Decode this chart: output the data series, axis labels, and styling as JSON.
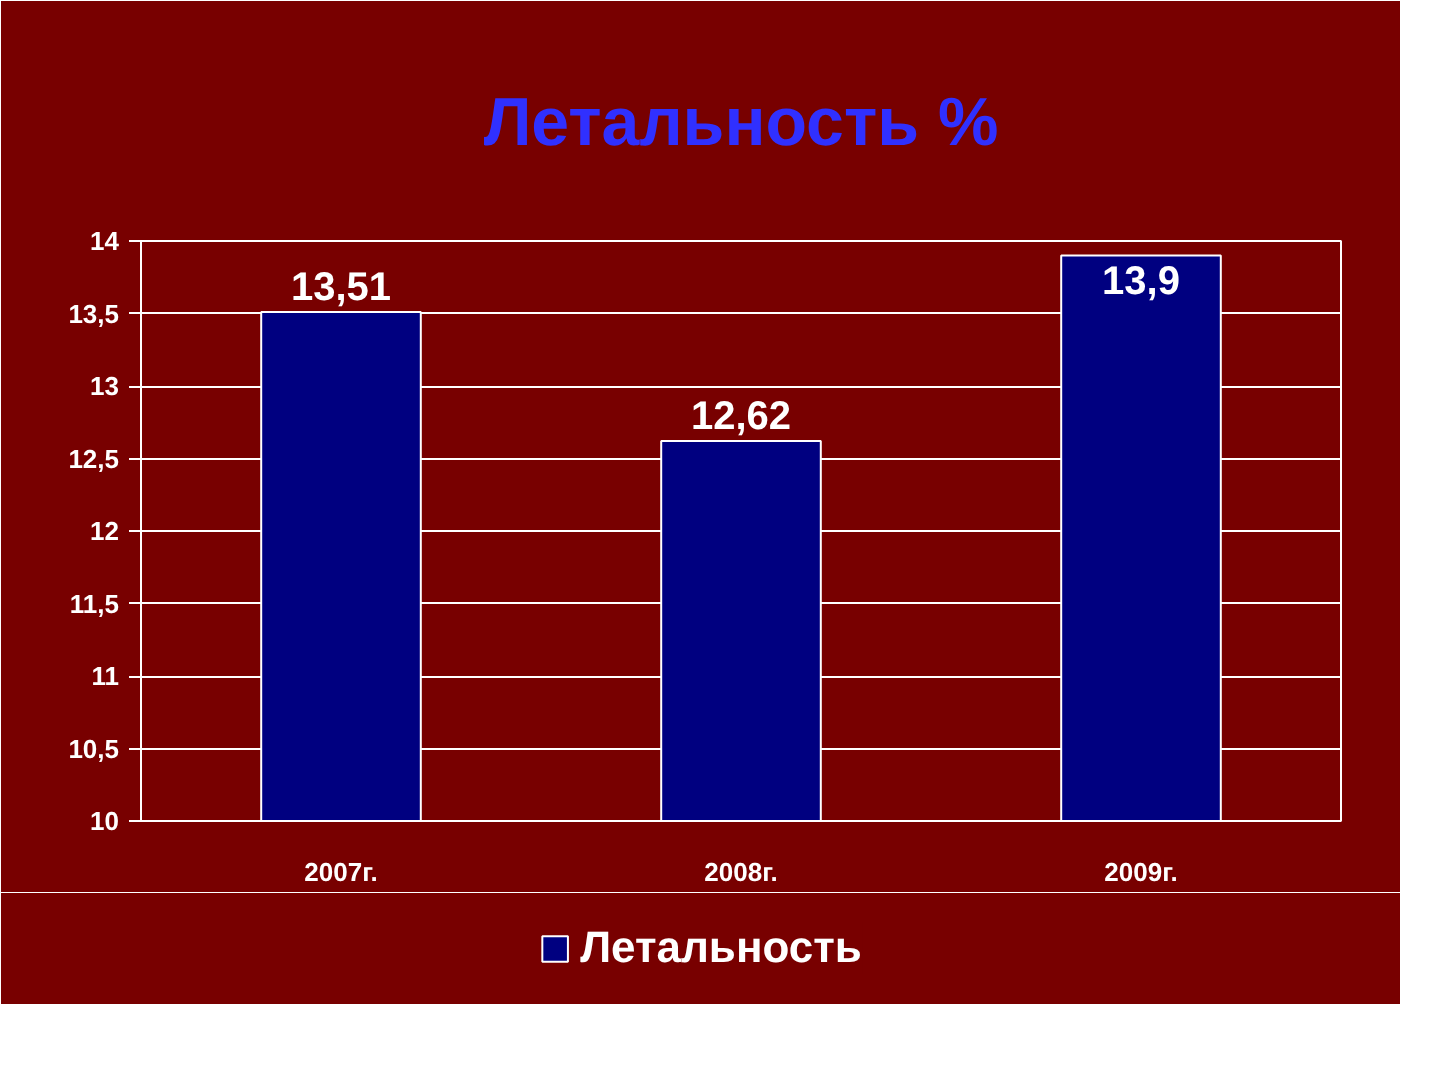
{
  "chart_data": {
    "type": "bar",
    "title": "Летальность %",
    "categories": [
      "2007г.",
      "2008г.",
      "2009г."
    ],
    "series": [
      {
        "name": "Летальность",
        "color": "#000080",
        "values": [
          13.51,
          12.62,
          13.9
        ],
        "value_labels": [
          "13,51",
          "12,62",
          "13,9"
        ]
      }
    ],
    "ylim": [
      10,
      14
    ],
    "yticks": [
      10,
      {
        "value": 10.5,
        "label": "10,5"
      },
      11,
      {
        "value": 11.5,
        "label": "11,5"
      },
      12,
      {
        "value": 12.5,
        "label": "12,5"
      },
      13,
      {
        "value": 13.5,
        "label": "13,5"
      },
      14
    ],
    "grid": "y",
    "legend": "bottom"
  }
}
